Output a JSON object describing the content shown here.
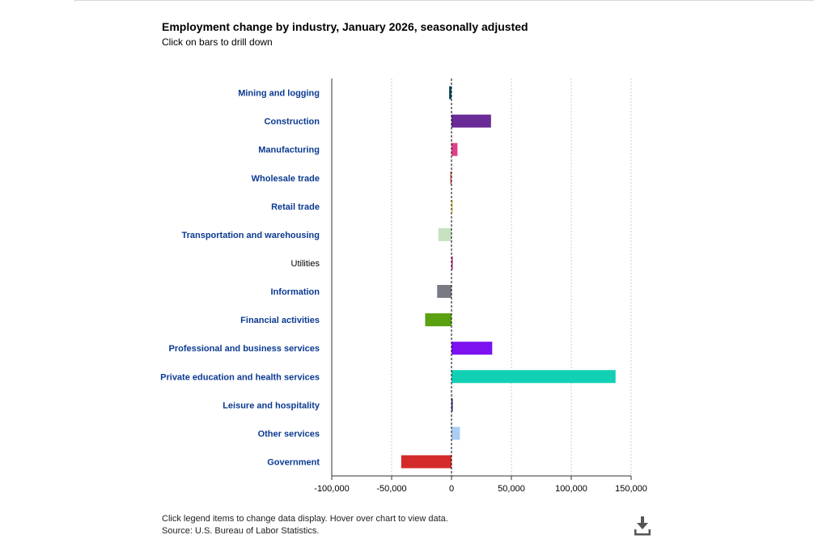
{
  "chart_data": {
    "type": "bar",
    "orientation": "horizontal",
    "title": "Employment change by industry, January 2026, seasonally adjusted",
    "subtitle": "Click on bars to drill down",
    "xlabel": "",
    "ylabel": "",
    "xlim": [
      -100000,
      150000
    ],
    "grid": true,
    "ticks": [
      {
        "value": -100000,
        "label": "-100,000"
      },
      {
        "value": -50000,
        "label": "-50,000"
      },
      {
        "value": 0,
        "label": "0"
      },
      {
        "value": 50000,
        "label": "50,000"
      },
      {
        "value": 100000,
        "label": "100,000"
      },
      {
        "value": 150000,
        "label": "150,000"
      }
    ],
    "categories": [
      "Mining and logging",
      "Construction",
      "Manufacturing",
      "Wholesale trade",
      "Retail trade",
      "Transportation and warehousing",
      "Utilities",
      "Information",
      "Financial activities",
      "Professional and business services",
      "Private education and health services",
      "Leisure and hospitality",
      "Other services",
      "Government"
    ],
    "values": [
      -2000,
      33000,
      5000,
      -1000,
      1000,
      -11000,
      1000,
      -12000,
      -22000,
      34000,
      137000,
      1000,
      7000,
      -42000
    ],
    "colors": [
      "#0e4d5f",
      "#6a2b96",
      "#e0408a",
      "#d9534f",
      "#f3d34a",
      "#c6e2c0",
      "#d4147a",
      "#7a7a85",
      "#5aa010",
      "#7d12f0",
      "#12d0b4",
      "#2a1a78",
      "#a9cdf5",
      "#d42a2a"
    ],
    "drilldown": [
      true,
      true,
      true,
      true,
      true,
      true,
      false,
      true,
      true,
      true,
      true,
      true,
      true,
      true
    ]
  },
  "footer": {
    "line1": "Click legend items to change data display. Hover over chart to view data.",
    "line2": "Source: U.S. Bureau of Labor Statistics."
  },
  "icons": {
    "download": "download-icon"
  }
}
